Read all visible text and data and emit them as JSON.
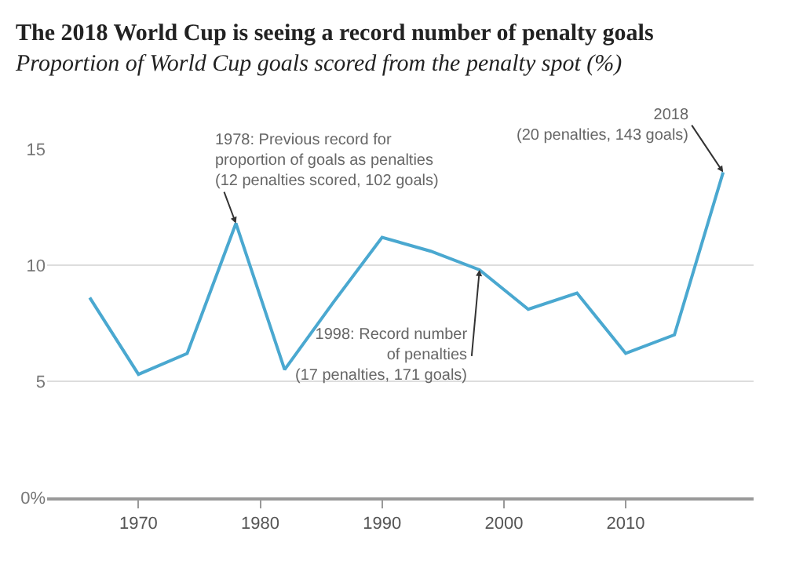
{
  "chart_data": {
    "type": "line",
    "title": "The 2018 World Cup is seeing a record number of penalty goals",
    "subtitle": "Proportion of World Cup goals scored from the penalty spot (%)",
    "x": [
      1966,
      1970,
      1974,
      1978,
      1982,
      1986,
      1990,
      1994,
      1998,
      2002,
      2006,
      2010,
      2014,
      2018
    ],
    "series": [
      {
        "color": "#4aa8d0",
        "values": [
          8.6,
          5.3,
          6.2,
          11.8,
          5.5,
          8.4,
          11.2,
          10.6,
          9.8,
          8.1,
          8.8,
          6.2,
          7.0,
          14.0
        ]
      }
    ],
    "xlim": [
      1962.5,
      2020.5
    ],
    "xticks": [
      1970,
      1980,
      1990,
      2000,
      2010
    ],
    "ylim": [
      0,
      15
    ],
    "yticks": [
      {
        "value": 0,
        "label": "0%"
      },
      5,
      10,
      15
    ],
    "grid": "y",
    "marker": "none",
    "line_style": "solid",
    "annotations": [
      {
        "text": "1978: Previous record for\nproportion of goals as penalties\n(12 penalties scored, 102 goals)",
        "x": 1978,
        "y": 11.8
      },
      {
        "text": "1998: Record number\nof penalties\n(17 penalties, 171 goals)",
        "x": 1998,
        "y": 9.8
      },
      {
        "text": "2018\n(20 penalties, 143 goals)",
        "x": 2018,
        "y": 14.0
      }
    ]
  }
}
